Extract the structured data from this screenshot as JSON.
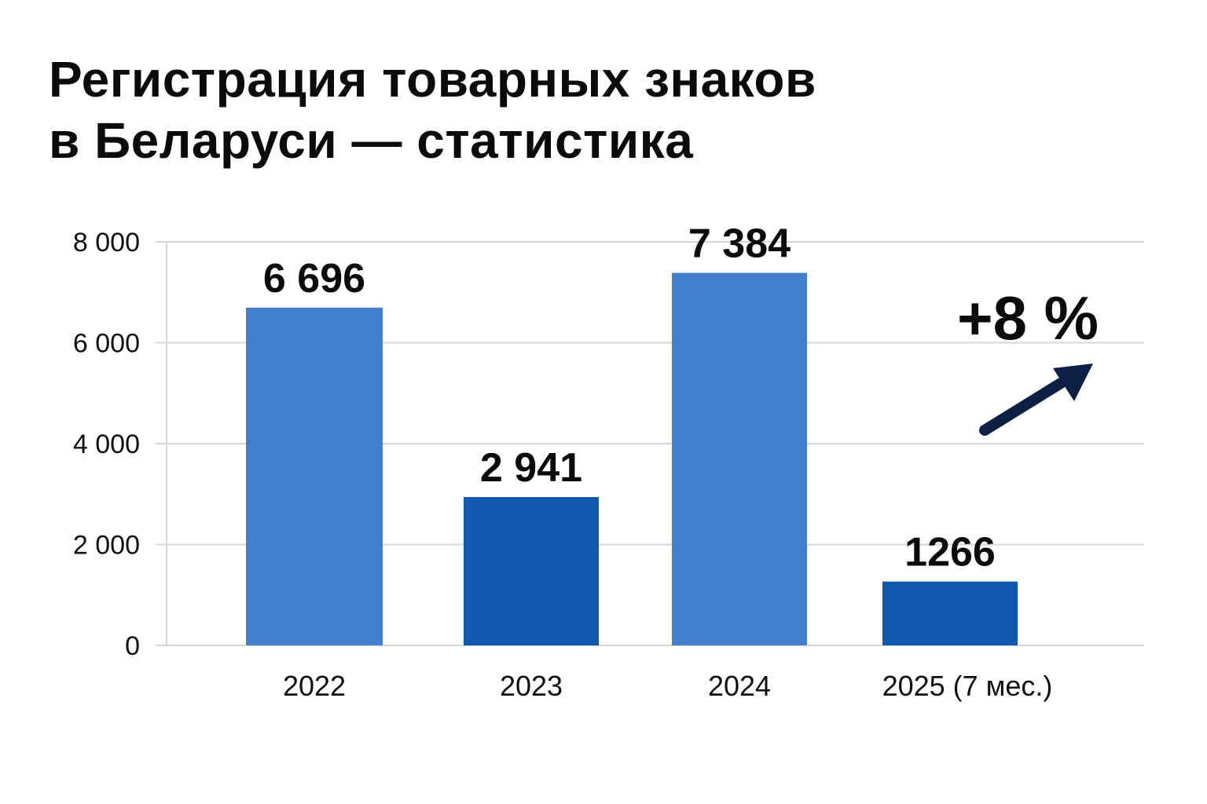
{
  "page": {
    "title_line1": "Регистрация товарных знаков",
    "title_line2": "в Беларуси — статистика"
  },
  "chart_data": {
    "type": "bar",
    "title": "Регистрация товарных знаков в Беларуси — статистика",
    "categories": [
      "2022",
      "2023",
      "2024",
      "2025 (7 мес.)"
    ],
    "values": [
      6696,
      2941,
      7384,
      1266
    ],
    "value_labels": [
      "6 696",
      "2 941",
      "7 384",
      "1266"
    ],
    "bar_colors": [
      "#437fcd",
      "#1159b0",
      "#437fcd",
      "#1159b0"
    ],
    "ylim": [
      0,
      8000
    ],
    "yticks": [
      0,
      2000,
      4000,
      6000,
      8000
    ],
    "ytick_labels": [
      "0",
      "2 000",
      "4 000",
      "6 000",
      "8 000"
    ],
    "xlabel": "",
    "ylabel": "",
    "grid": true,
    "legend": "none",
    "annotation": {
      "text": "+8 %",
      "icon": "trend-up-arrow-icon",
      "color": "#0d1f45"
    }
  }
}
